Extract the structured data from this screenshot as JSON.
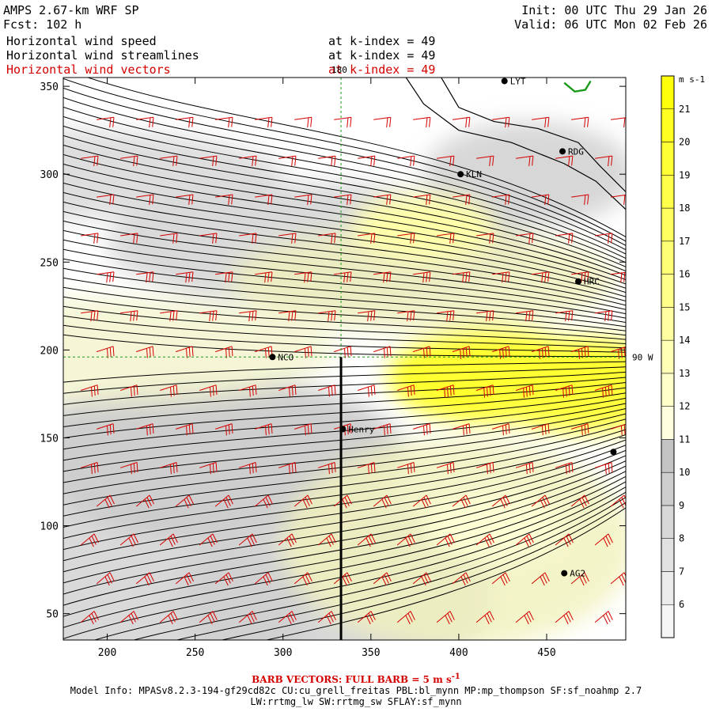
{
  "header": {
    "model": "AMPS 2.67-km WRF SP",
    "forecast": "Fcst: 102 h",
    "init": "Init: 00 UTC Thu 29 Jan 26",
    "valid": "Valid: 06 UTC Mon 02 Feb 26",
    "fields": [
      {
        "name": "Horizontal wind speed",
        "level": "at k-index = 49",
        "color": "#000000"
      },
      {
        "name": "Horizontal wind streamlines",
        "level": "at k-index = 49",
        "color": "#000000"
      },
      {
        "name": "Horizontal wind vectors",
        "level": "at k-index = 49",
        "color": "#d40000"
      }
    ]
  },
  "chart_data": {
    "type": "heatmap",
    "xlim": [
      175,
      495
    ],
    "ylim": [
      35,
      355
    ],
    "x_ticks": [
      200,
      250,
      300,
      350,
      400,
      450
    ],
    "y_ticks": [
      50,
      100,
      150,
      200,
      250,
      300,
      350
    ],
    "colorbar": {
      "unit": "m s-1",
      "levels": [
        6,
        7,
        8,
        9,
        10,
        11,
        12,
        13,
        14,
        15,
        16,
        17,
        18,
        19,
        20,
        21
      ],
      "range": [
        5,
        22
      ]
    },
    "reference_lines": [
      {
        "label": "180",
        "orientation": "vertical",
        "value": 333
      },
      {
        "label": "90 W",
        "orientation": "horizontal",
        "value": 196
      }
    ],
    "stations": [
      {
        "name": "LYT",
        "x": 426,
        "y": 353
      },
      {
        "name": "RDG",
        "x": 459,
        "y": 313
      },
      {
        "name": "KLN",
        "x": 401,
        "y": 300
      },
      {
        "name": "HRC",
        "x": 468,
        "y": 239
      },
      {
        "name": "NCO",
        "x": 294,
        "y": 196
      },
      {
        "name": "Henry",
        "x": 334,
        "y": 155
      },
      {
        "name": "",
        "x": 488,
        "y": 142
      },
      {
        "name": "AG2",
        "x": 460,
        "y": 73
      }
    ],
    "cross_section": {
      "x": 333,
      "y_from": 35,
      "y_to": 196
    },
    "wind_speed_features": [
      {
        "description": "jet maximum",
        "x": 420,
        "y": 185,
        "speed": 20
      },
      {
        "description": "jet core east",
        "x": 470,
        "y": 180,
        "speed": 19
      },
      {
        "description": "northern band",
        "x": 380,
        "y": 270,
        "speed": 14
      },
      {
        "description": "southern broad flow",
        "x": 420,
        "y": 100,
        "speed": 12
      }
    ],
    "barb_legend": "BARB VECTORS:  FULL BARB = 5 m s",
    "barb_legend_exp": "-1"
  },
  "footer": {
    "line1": "Model Info: MPASv8.2.3-194-gf29cd82c CU:cu_grell_freitas PBL:bl_mynn MP:mp_thompson SF:sf_noahmp 2.7",
    "line2": "LW:rrtmg_lw SW:rrtmg_sw SFLAY:sf_mynn"
  },
  "colors": {
    "fill_low": "#c8c8c8",
    "fill_high": "#ffff00",
    "streamline": "#000000",
    "barb": "#d40000",
    "coast": "#000000",
    "highlight_coast": "#1a9a1a",
    "reference_line": "#1a9a1a"
  }
}
